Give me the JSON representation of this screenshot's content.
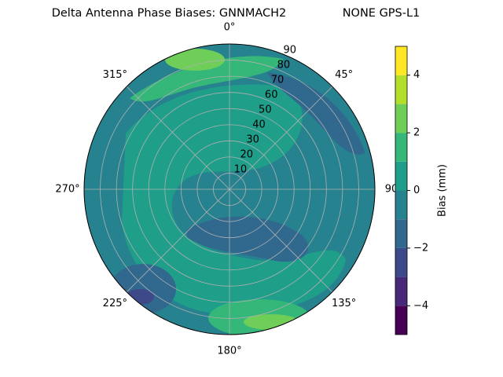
{
  "chart_data": {
    "type": "polar_contour",
    "title": "Delta Antenna Phase Biases: GNNMACH2",
    "subtitle": "NONE GPS-L1",
    "theta_ticks": [
      {
        "value": 0,
        "label": "0°"
      },
      {
        "value": 45,
        "label": "45°"
      },
      {
        "value": 90,
        "label": "90"
      },
      {
        "value": 135,
        "label": "135°"
      },
      {
        "value": 180,
        "label": "180°"
      },
      {
        "value": 225,
        "label": "225°"
      },
      {
        "value": 270,
        "label": "270°"
      },
      {
        "value": 315,
        "label": "315°"
      }
    ],
    "rlim": [
      0,
      90
    ],
    "rticks": [
      10,
      20,
      30,
      40,
      50,
      60,
      70,
      80,
      90
    ],
    "grid": true,
    "region_values": [
      -0.5,
      0.5,
      1.5,
      2.5,
      1.5,
      2.5,
      -1.5,
      -1.5,
      -2.5,
      -1.5
    ],
    "colorbar": {
      "label": "Bias (mm)",
      "levels": [
        -5,
        -4,
        -3,
        -2,
        -1,
        0,
        1,
        2,
        3,
        4,
        5
      ],
      "colors": [
        "#440154",
        "#482878",
        "#3e4989",
        "#31688e",
        "#26828e",
        "#1f9e89",
        "#35b779",
        "#6ece58",
        "#b5de2b",
        "#fde725"
      ],
      "ticks": [
        {
          "value": -4,
          "label": "−4"
        },
        {
          "value": -2,
          "label": "−2"
        },
        0,
        2,
        4
      ]
    }
  }
}
